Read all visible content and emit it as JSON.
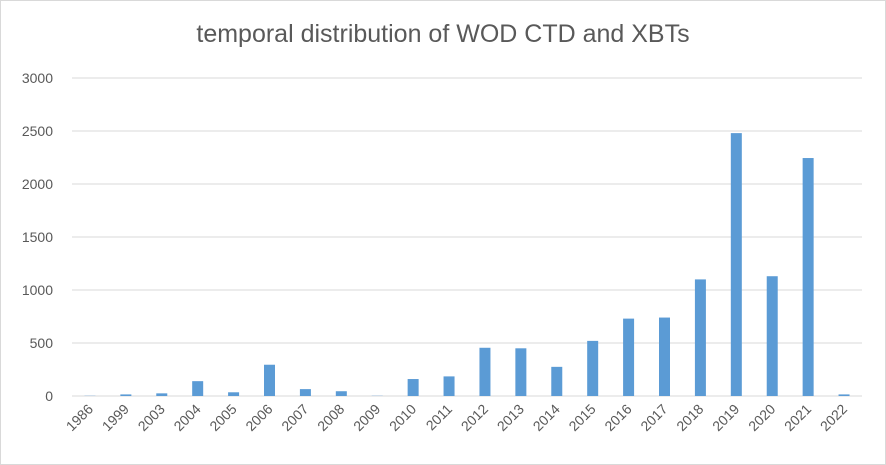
{
  "chart_data": {
    "type": "bar",
    "title": "temporal distribution of WOD CTD and XBTs",
    "xlabel": "",
    "ylabel": "",
    "categories": [
      "1986",
      "1999",
      "2003",
      "2004",
      "2005",
      "2006",
      "2007",
      "2008",
      "2009",
      "2010",
      "2011",
      "2012",
      "2013",
      "2014",
      "2015",
      "2016",
      "2017",
      "2018",
      "2019",
      "2020",
      "2021",
      "2022"
    ],
    "values": [
      2,
      15,
      25,
      140,
      35,
      295,
      65,
      45,
      2,
      160,
      185,
      455,
      450,
      275,
      520,
      730,
      740,
      1100,
      2480,
      1130,
      2245,
      15
    ],
    "ylim": [
      0,
      3000
    ],
    "yticks": [
      0,
      500,
      1000,
      1500,
      2000,
      2500,
      3000
    ],
    "grid": true,
    "legend": "none",
    "bar_color": "#5b9bd5",
    "grid_color": "#d9d9d9"
  }
}
